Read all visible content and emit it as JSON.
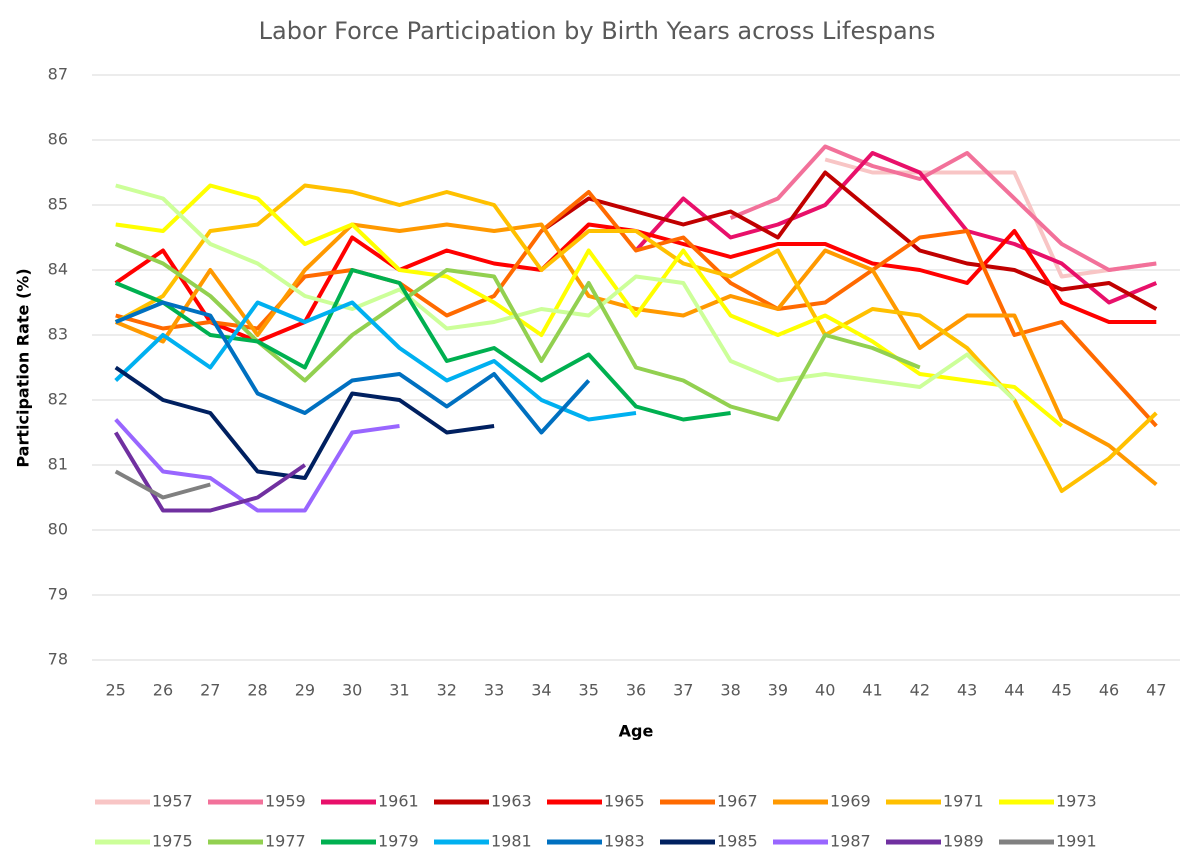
{
  "chart_data": {
    "type": "line",
    "title": "Labor Force Participation by Birth Years across Lifespans",
    "x_label": "Age",
    "y_label": "Participation Rate (%)",
    "categories": [
      "25",
      "26",
      "27",
      "28",
      "29",
      "30",
      "31",
      "32",
      "33",
      "34",
      "35",
      "36",
      "37",
      "38",
      "39",
      "40",
      "41",
      "42",
      "43",
      "44",
      "45",
      "46",
      "47"
    ],
    "ylim": [
      78,
      87
    ],
    "yticks": [
      78,
      79,
      80,
      81,
      82,
      83,
      84,
      85,
      86,
      87
    ],
    "grid": true,
    "legend": "bottom",
    "series": [
      {
        "name": "1957",
        "color": "#f8c5c5",
        "values": [
          null,
          null,
          null,
          null,
          null,
          null,
          null,
          null,
          null,
          null,
          null,
          null,
          null,
          null,
          null,
          85.7,
          85.5,
          85.5,
          85.5,
          85.5,
          83.9,
          84.0,
          84.1
        ]
      },
      {
        "name": "1959",
        "color": "#f2719a",
        "values": [
          null,
          null,
          null,
          null,
          null,
          null,
          null,
          null,
          null,
          null,
          null,
          null,
          null,
          84.8,
          85.1,
          85.9,
          85.6,
          85.4,
          85.8,
          85.1,
          84.4,
          84.0,
          84.1
        ]
      },
      {
        "name": "1961",
        "color": "#e8106a",
        "values": [
          null,
          null,
          null,
          null,
          null,
          null,
          null,
          null,
          null,
          null,
          null,
          84.3,
          85.1,
          84.5,
          84.7,
          85.0,
          85.8,
          85.5,
          84.6,
          84.4,
          84.1,
          83.5,
          83.8
        ]
      },
      {
        "name": "1963",
        "color": "#c00000",
        "values": [
          null,
          null,
          null,
          null,
          null,
          null,
          null,
          null,
          null,
          84.6,
          85.1,
          84.9,
          84.7,
          84.9,
          84.5,
          85.5,
          84.9,
          84.3,
          84.1,
          84.0,
          83.7,
          83.8,
          83.4
        ]
      },
      {
        "name": "1965",
        "color": "#ff0000",
        "values": [
          83.8,
          84.3,
          83.2,
          82.9,
          83.2,
          84.5,
          84.0,
          84.3,
          84.1,
          84.0,
          84.7,
          84.6,
          84.4,
          84.2,
          84.4,
          84.4,
          84.1,
          84.0,
          83.8,
          84.6,
          83.5,
          83.2,
          83.2
        ]
      },
      {
        "name": "1967",
        "color": "#ff6a00",
        "values": [
          83.3,
          83.1,
          83.2,
          83.1,
          83.9,
          84.0,
          83.8,
          83.3,
          83.6,
          84.6,
          85.2,
          84.3,
          84.5,
          83.8,
          83.4,
          83.5,
          84.0,
          84.5,
          84.6,
          83.0,
          83.2,
          82.4,
          81.6
        ]
      },
      {
        "name": "1969",
        "color": "#ff9900",
        "values": [
          83.2,
          82.9,
          84.0,
          83.0,
          84.0,
          84.7,
          84.6,
          84.7,
          84.6,
          84.7,
          83.6,
          83.4,
          83.3,
          83.6,
          83.4,
          84.3,
          84.0,
          82.8,
          83.3,
          83.3,
          81.7,
          81.3,
          80.7
        ]
      },
      {
        "name": "1971",
        "color": "#ffc000",
        "values": [
          83.2,
          83.6,
          84.6,
          84.7,
          85.3,
          85.2,
          85.0,
          85.2,
          85.0,
          84.0,
          84.6,
          84.6,
          84.1,
          83.9,
          84.3,
          83.0,
          83.4,
          83.3,
          82.8,
          82.0,
          80.6,
          81.1,
          81.8
        ]
      },
      {
        "name": "1973",
        "color": "#ffff00",
        "values": [
          84.7,
          84.6,
          85.3,
          85.1,
          84.4,
          84.7,
          84.0,
          83.9,
          83.5,
          83.0,
          84.3,
          83.3,
          84.3,
          83.3,
          83.0,
          83.3,
          82.9,
          82.4,
          82.3,
          82.2,
          81.6,
          null,
          null
        ]
      },
      {
        "name": "1975",
        "color": "#ccff99",
        "values": [
          85.3,
          85.1,
          84.4,
          84.1,
          83.6,
          83.4,
          83.7,
          83.1,
          83.2,
          83.4,
          83.3,
          83.9,
          83.8,
          82.6,
          82.3,
          82.4,
          82.3,
          82.2,
          82.7,
          82.0,
          null,
          null,
          null
        ]
      },
      {
        "name": "1977",
        "color": "#92d050",
        "values": [
          84.4,
          84.1,
          83.6,
          82.9,
          82.3,
          83.0,
          83.5,
          84.0,
          83.9,
          82.6,
          83.8,
          82.5,
          82.3,
          81.9,
          81.7,
          83.0,
          82.8,
          82.5,
          null,
          null,
          null,
          null,
          null
        ]
      },
      {
        "name": "1979",
        "color": "#00b050",
        "values": [
          83.8,
          83.5,
          83.0,
          82.9,
          82.5,
          84.0,
          83.8,
          82.6,
          82.8,
          82.3,
          82.7,
          81.9,
          81.7,
          81.8,
          null,
          null,
          null,
          null,
          null,
          null,
          null,
          null,
          null
        ]
      },
      {
        "name": "1981",
        "color": "#00b0f0",
        "values": [
          82.3,
          83.0,
          82.5,
          83.5,
          83.2,
          83.5,
          82.8,
          82.3,
          82.6,
          82.0,
          81.7,
          81.8,
          null,
          null,
          null,
          null,
          null,
          null,
          null,
          null,
          null,
          null,
          null
        ]
      },
      {
        "name": "1983",
        "color": "#0070c0",
        "values": [
          83.2,
          83.5,
          83.3,
          82.1,
          81.8,
          82.3,
          82.4,
          81.9,
          82.4,
          81.5,
          82.3,
          null,
          null,
          null,
          null,
          null,
          null,
          null,
          null,
          null,
          null,
          null,
          null
        ]
      },
      {
        "name": "1985",
        "color": "#002060",
        "values": [
          82.5,
          82.0,
          81.8,
          80.9,
          80.8,
          82.1,
          82.0,
          81.5,
          81.6,
          null,
          null,
          null,
          null,
          null,
          null,
          null,
          null,
          null,
          null,
          null,
          null,
          null,
          null
        ]
      },
      {
        "name": "1987",
        "color": "#9966ff",
        "values": [
          81.7,
          80.9,
          80.8,
          80.3,
          80.3,
          81.5,
          81.6,
          null,
          null,
          null,
          null,
          null,
          null,
          null,
          null,
          null,
          null,
          null,
          null,
          null,
          null,
          null,
          null
        ]
      },
      {
        "name": "1989",
        "color": "#7030a0",
        "values": [
          81.5,
          80.3,
          80.3,
          80.5,
          81.0,
          null,
          null,
          null,
          null,
          null,
          null,
          null,
          null,
          null,
          null,
          null,
          null,
          null,
          null,
          null,
          null,
          null,
          null
        ]
      },
      {
        "name": "1991",
        "color": "#808080",
        "values": [
          80.9,
          80.5,
          80.7,
          null,
          null,
          null,
          null,
          null,
          null,
          null,
          null,
          null,
          null,
          null,
          null,
          null,
          null,
          null,
          null,
          null,
          null,
          null,
          null
        ]
      }
    ]
  }
}
